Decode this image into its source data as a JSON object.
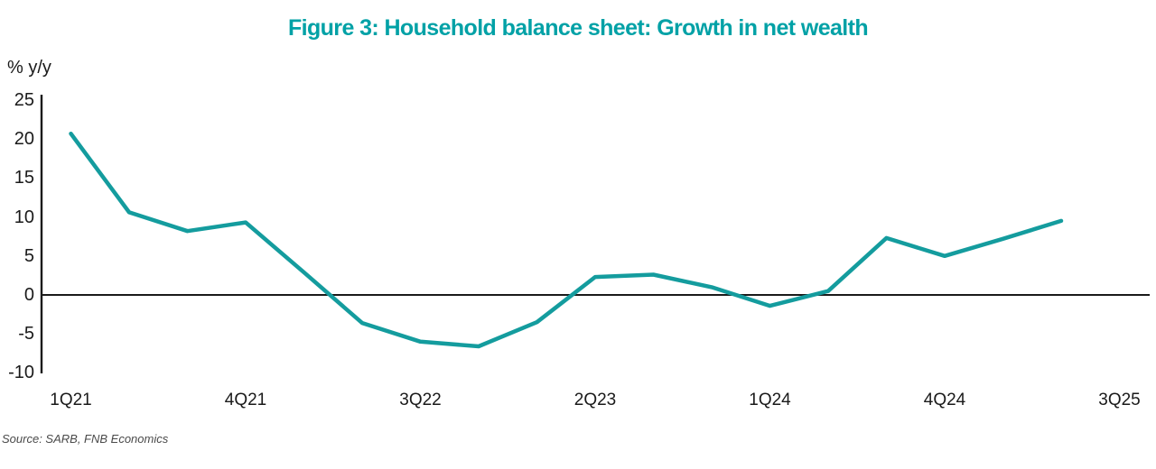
{
  "chart_data": {
    "type": "line",
    "title": "Figure 3: Household balance sheet: Growth in net wealth",
    "ylabel": "% y/y",
    "source": "Source: SARB, FNB Economics",
    "x_tick_labels": [
      "1Q21",
      "4Q21",
      "3Q22",
      "2Q23",
      "1Q24",
      "4Q24",
      "3Q25"
    ],
    "x_tick_step_quarters": 3,
    "y_ticks": [
      25,
      20,
      15,
      10,
      5,
      0,
      -5,
      -10
    ],
    "ylim": [
      -10,
      25
    ],
    "x_range_quarters": [
      "1Q21",
      "3Q25"
    ],
    "grid": false,
    "legend": "none",
    "zero_baseline": true,
    "colors": {
      "title_teal": "#00a1a6",
      "line_teal": "#149c9e",
      "axis_black": "#1a1a1a",
      "source_gray": "#4a4a4a"
    },
    "series": [
      {
        "name": "Growth in household net wealth",
        "color": "#149c9e",
        "x": [
          "1Q21",
          "2Q21",
          "3Q21",
          "4Q21",
          "1Q22",
          "2Q22",
          "3Q22",
          "4Q22",
          "1Q23",
          "2Q23",
          "3Q23",
          "4Q23",
          "1Q24",
          "2Q24",
          "3Q24",
          "4Q24",
          "1Q25",
          "2Q25"
        ],
        "values": [
          20.7,
          10.6,
          8.2,
          9.3,
          2.9,
          -3.6,
          -6.0,
          -6.6,
          -3.5,
          2.3,
          2.6,
          1.0,
          -1.4,
          0.5,
          7.3,
          5.0,
          7.2,
          9.5
        ]
      }
    ]
  }
}
